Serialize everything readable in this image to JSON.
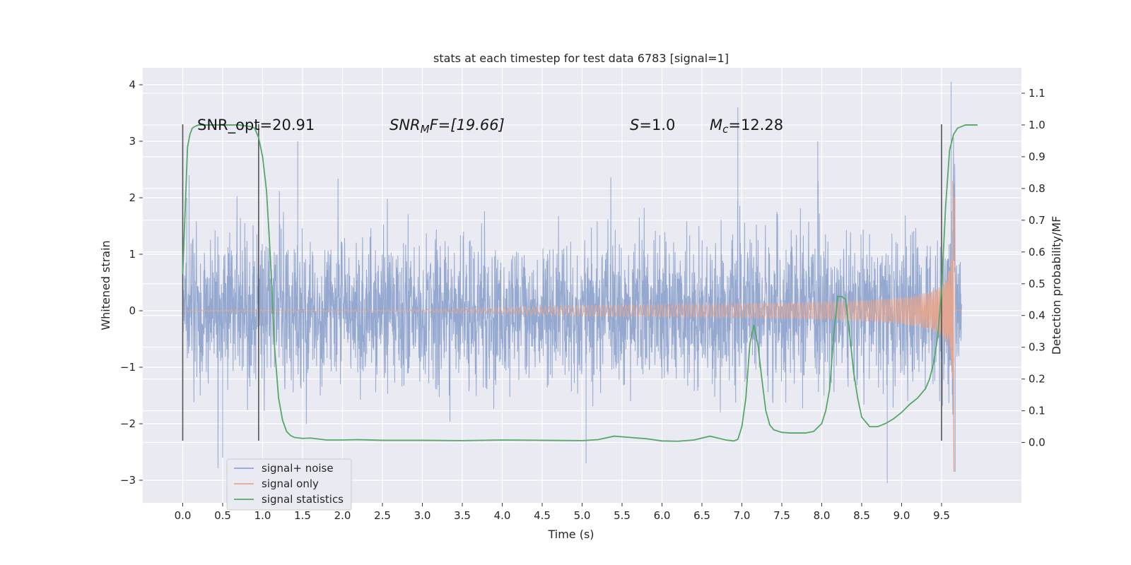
{
  "chart_data": {
    "type": "line",
    "title": "stats at each timestep for test data 6783 [signal=1]",
    "xlabel": "Time (s)",
    "ylabel": "Whitened strain",
    "y2label": "Detection probability/MF",
    "xlim": [
      -0.5,
      10.5
    ],
    "ylim": [
      -3.4,
      4.3
    ],
    "y2lim": [
      -0.19,
      1.18
    ],
    "grid": true,
    "legend_position": "lower-left",
    "x_ticks": [
      "0.0",
      "0.5",
      "1.0",
      "1.5",
      "2.0",
      "2.5",
      "3.0",
      "3.5",
      "4.0",
      "4.5",
      "5.0",
      "5.5",
      "6.0",
      "6.5",
      "7.0",
      "7.5",
      "8.0",
      "8.5",
      "9.0",
      "9.5"
    ],
    "y_ticks": [
      "−3",
      "−2",
      "−1",
      "0",
      "1",
      "2",
      "3",
      "4"
    ],
    "y2_ticks": [
      "0.0",
      "0.1",
      "0.2",
      "0.3",
      "0.4",
      "0.5",
      "0.6",
      "0.7",
      "0.8",
      "0.9",
      "1.0",
      "1.1"
    ],
    "annotations": {
      "snr_opt": "SNR_opt=20.91",
      "snr_mf_label": "SNR",
      "snr_mf_sub": "M",
      "snr_mf_rest": "F=[19.66]",
      "s_label": "S",
      "s_rest": "=1.0",
      "mc_label": "M",
      "mc_sub": "c",
      "mc_rest": "=12.28"
    },
    "vertical_lines": [
      {
        "x": 0.0,
        "ymin": -2.3,
        "ymax": 3.3
      },
      {
        "x": 0.95,
        "ymin": -2.3,
        "ymax": 3.3
      },
      {
        "x": 9.5,
        "ymin": -2.3,
        "ymax": 3.3
      }
    ],
    "series": [
      {
        "name": "signal+ noise",
        "color": "#8fa4cd",
        "axis": "left",
        "x_range": [
          0.0,
          9.75
        ],
        "approx_envelope": 1.2,
        "peaks": [
          [
            0.05,
            2.0
          ],
          [
            0.08,
            2.4
          ],
          [
            0.5,
            -2.6
          ],
          [
            1.44,
            3.0
          ],
          [
            5.05,
            -2.7
          ],
          [
            6.95,
            3.6
          ],
          [
            7.95,
            3.0
          ],
          [
            8.82,
            -3.05
          ],
          [
            9.62,
            4.05
          ],
          [
            9.67,
            -2.85
          ]
        ]
      },
      {
        "name": "signal only",
        "color": "#e8a58c",
        "axis": "left",
        "x_range": [
          0.0,
          9.75
        ],
        "chirp_merger_time": 9.65,
        "merger_peak": 2.3,
        "merger_trough": -2.85
      },
      {
        "name": "signal statistics",
        "color": "#55a868",
        "axis": "right",
        "x": [
          0.0,
          0.03,
          0.06,
          0.09,
          0.12,
          0.15,
          0.2,
          0.3,
          0.5,
          0.7,
          0.85,
          0.9,
          0.95,
          1.0,
          1.05,
          1.1,
          1.15,
          1.2,
          1.25,
          1.3,
          1.35,
          1.4,
          1.5,
          1.6,
          1.8,
          2.0,
          2.2,
          2.5,
          3.0,
          3.5,
          4.0,
          4.5,
          5.0,
          5.2,
          5.4,
          5.6,
          5.8,
          6.0,
          6.2,
          6.4,
          6.6,
          6.8,
          6.9,
          6.95,
          7.0,
          7.05,
          7.1,
          7.15,
          7.2,
          7.25,
          7.3,
          7.35,
          7.4,
          7.5,
          7.6,
          7.7,
          7.8,
          7.9,
          8.0,
          8.05,
          8.1,
          8.15,
          8.2,
          8.25,
          8.3,
          8.35,
          8.4,
          8.45,
          8.5,
          8.6,
          8.7,
          8.8,
          8.9,
          9.0,
          9.1,
          9.2,
          9.3,
          9.35,
          9.4,
          9.45,
          9.5,
          9.55,
          9.6,
          9.65,
          9.7,
          9.8,
          9.9,
          9.95
        ],
        "values": [
          0.53,
          0.73,
          0.93,
          0.97,
          0.99,
          0.995,
          1.0,
          1.0,
          1.0,
          1.0,
          0.995,
          0.99,
          0.96,
          0.9,
          0.79,
          0.57,
          0.3,
          0.14,
          0.07,
          0.035,
          0.022,
          0.016,
          0.013,
          0.014,
          0.008,
          0.008,
          0.009,
          0.007,
          0.007,
          0.006,
          0.008,
          0.007,
          0.006,
          0.009,
          0.02,
          0.016,
          0.012,
          0.005,
          0.004,
          0.008,
          0.02,
          0.008,
          0.005,
          0.01,
          0.05,
          0.14,
          0.31,
          0.37,
          0.31,
          0.2,
          0.1,
          0.055,
          0.04,
          0.032,
          0.03,
          0.03,
          0.03,
          0.035,
          0.06,
          0.1,
          0.17,
          0.34,
          0.46,
          0.46,
          0.45,
          0.34,
          0.22,
          0.14,
          0.08,
          0.05,
          0.05,
          0.06,
          0.075,
          0.095,
          0.12,
          0.14,
          0.17,
          0.2,
          0.25,
          0.33,
          0.48,
          0.74,
          0.92,
          0.97,
          0.99,
          1.0,
          1.0,
          1.0
        ]
      }
    ]
  }
}
